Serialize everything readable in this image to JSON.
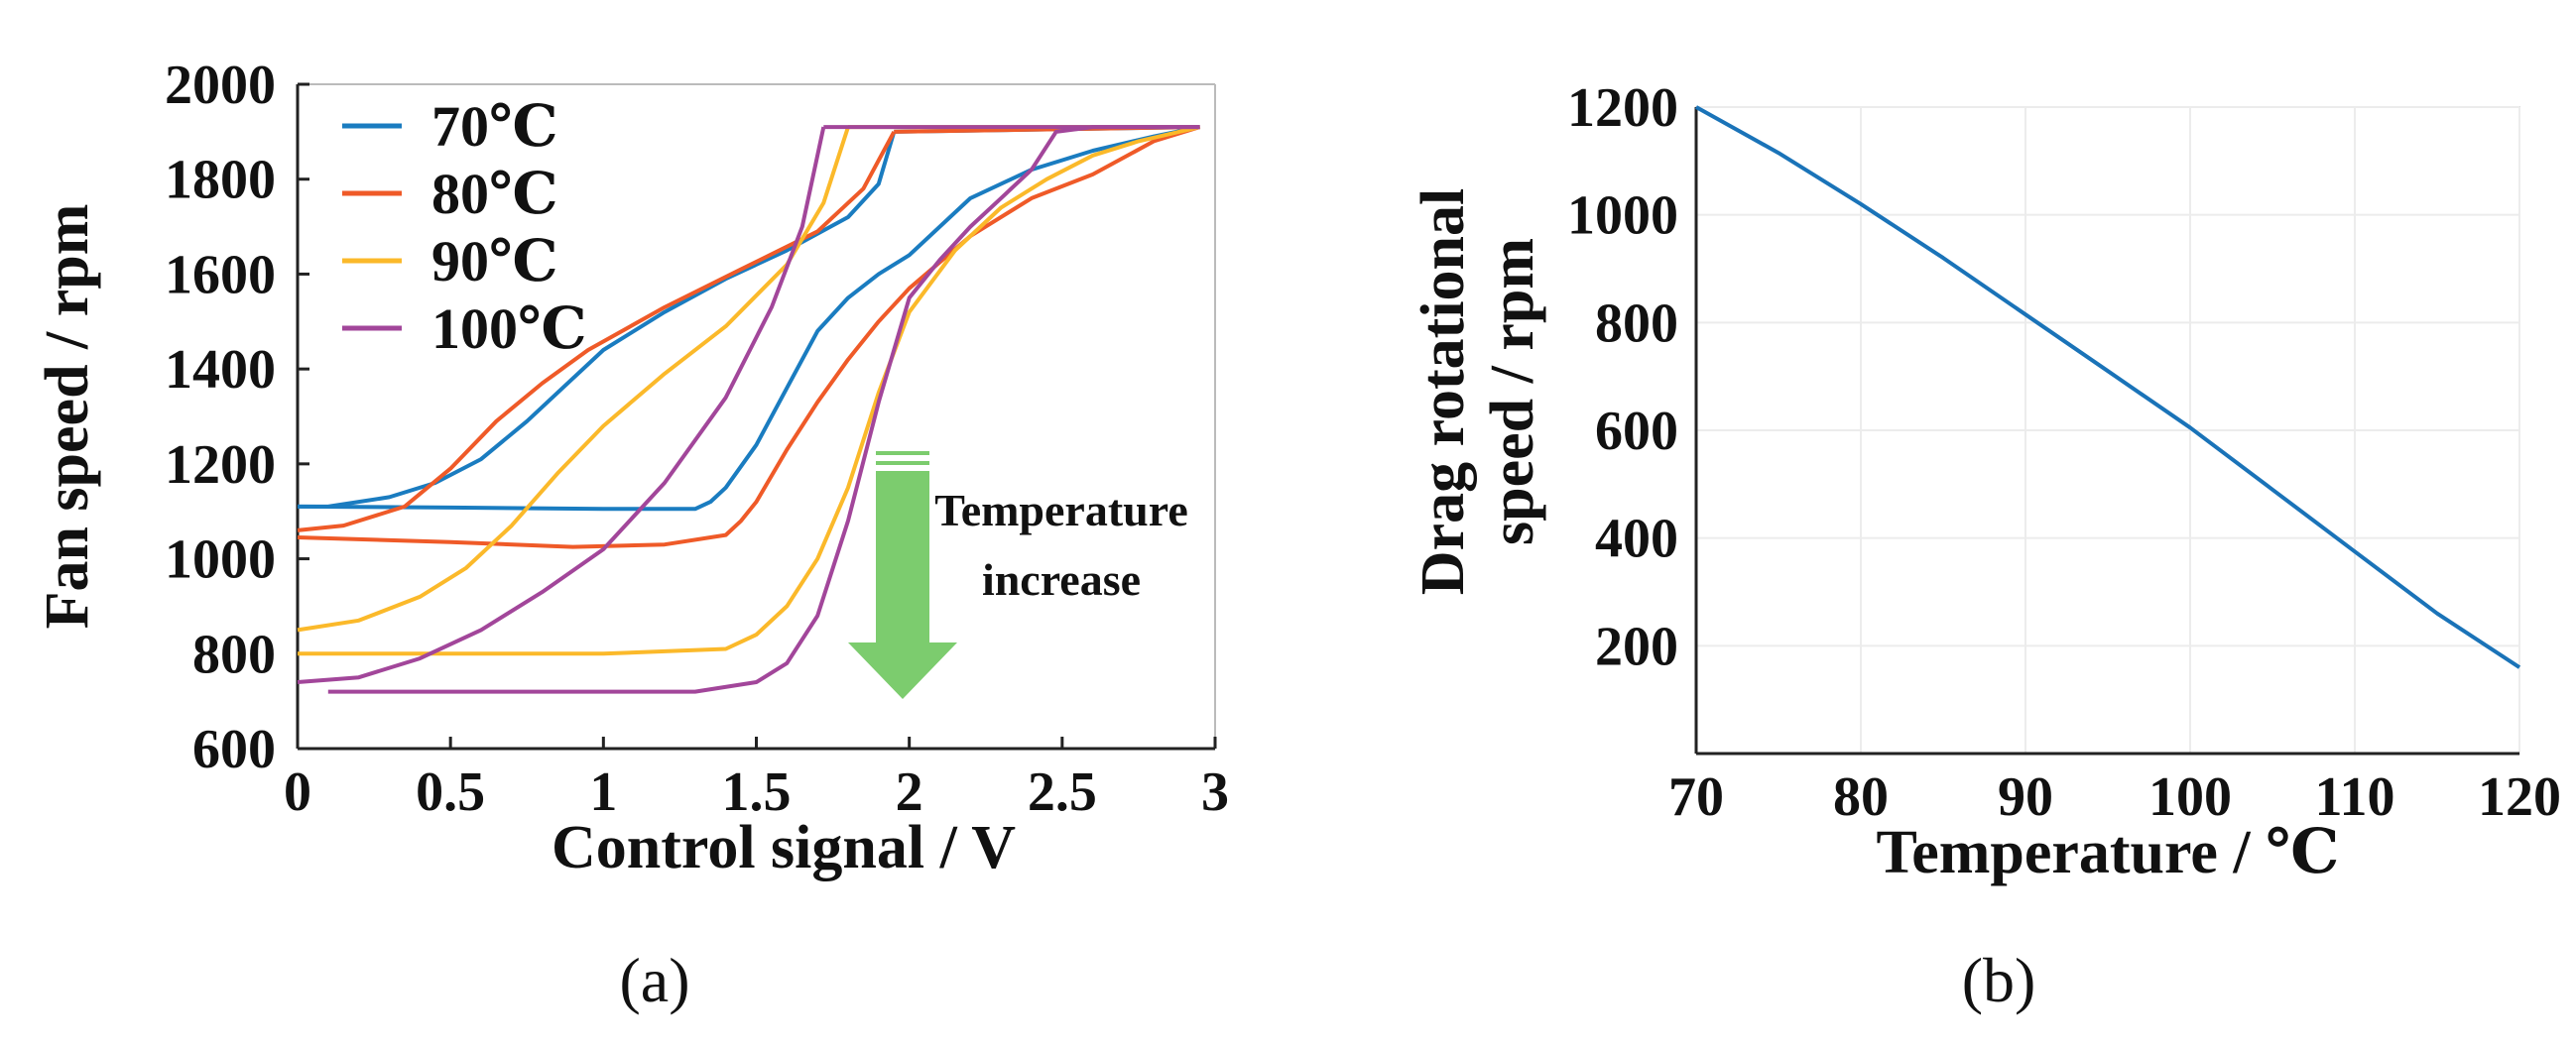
{
  "chart_data": [
    {
      "panel": "(a)",
      "type": "line",
      "xlabel": "Control signal / V",
      "ylabel": "Fan speed / rpm",
      "xlim": [
        0,
        3
      ],
      "ylim": [
        600,
        2000
      ],
      "xticks": [
        0,
        0.5,
        1,
        1.5,
        2,
        2.5,
        3
      ],
      "xtick_labels": [
        "0",
        "0.5",
        "1",
        "1.5",
        "2",
        "2.5",
        "3"
      ],
      "yticks": [
        600,
        800,
        1000,
        1200,
        1400,
        1600,
        1800,
        2000
      ],
      "ytick_labels": [
        "600",
        "800",
        "1000",
        "1200",
        "1400",
        "1600",
        "1800",
        "2000"
      ],
      "legend_position": "top-left",
      "annotation": {
        "text_line1": "Temperature",
        "text_line2": "increase",
        "arrow": "down",
        "color": "#7ccc6e"
      },
      "series": [
        {
          "name": "70℃",
          "color": "#1a7cc0",
          "x": [
            0,
            0.1,
            0.3,
            0.45,
            0.6,
            0.75,
            0.9,
            1.0,
            1.2,
            1.4,
            1.6,
            1.8,
            1.9,
            1.95
          ],
          "y": [
            1110,
            1110,
            1130,
            1160,
            1210,
            1290,
            1380,
            1440,
            1520,
            1590,
            1650,
            1720,
            1790,
            1900
          ],
          "x_return": [
            2.95,
            2.8,
            2.6,
            2.4,
            2.2,
            2.0,
            1.9,
            1.8,
            1.7,
            1.6,
            1.5,
            1.4,
            1.35,
            1.3,
            1.0,
            0.5,
            0.0
          ],
          "y_return": [
            1910,
            1890,
            1860,
            1820,
            1760,
            1640,
            1600,
            1550,
            1480,
            1360,
            1240,
            1150,
            1120,
            1105,
            1105,
            1108,
            1110
          ]
        },
        {
          "name": "80℃",
          "color": "#ef5a28",
          "x": [
            0,
            0.15,
            0.35,
            0.5,
            0.65,
            0.8,
            0.95,
            1.2,
            1.45,
            1.7,
            1.85,
            1.95
          ],
          "y": [
            1060,
            1070,
            1110,
            1190,
            1290,
            1370,
            1440,
            1530,
            1610,
            1690,
            1780,
            1900
          ],
          "x_return": [
            2.95,
            2.8,
            2.6,
            2.4,
            2.2,
            2.0,
            1.9,
            1.8,
            1.7,
            1.6,
            1.5,
            1.45,
            1.4,
            1.2,
            0.9,
            0.5,
            0.0
          ],
          "y_return": [
            1910,
            1880,
            1810,
            1760,
            1680,
            1570,
            1500,
            1420,
            1330,
            1230,
            1120,
            1080,
            1050,
            1030,
            1025,
            1035,
            1045
          ]
        },
        {
          "name": "90℃",
          "color": "#fbb92a",
          "x": [
            0,
            0.2,
            0.4,
            0.55,
            0.7,
            0.85,
            1.0,
            1.2,
            1.4,
            1.6,
            1.72,
            1.8
          ],
          "y": [
            850,
            870,
            920,
            980,
            1070,
            1180,
            1280,
            1390,
            1490,
            1620,
            1750,
            1910
          ],
          "x_return": [
            2.95,
            2.75,
            2.6,
            2.45,
            2.3,
            2.15,
            2.0,
            1.9,
            1.8,
            1.7,
            1.6,
            1.5,
            1.4,
            1.0,
            0.5,
            0.0
          ],
          "y_return": [
            1910,
            1880,
            1850,
            1800,
            1740,
            1650,
            1520,
            1350,
            1150,
            1000,
            900,
            840,
            810,
            800,
            800,
            800
          ]
        },
        {
          "name": "100℃",
          "color": "#a2469a",
          "x": [
            0,
            0.2,
            0.4,
            0.6,
            0.8,
            1.0,
            1.2,
            1.4,
            1.55,
            1.65,
            1.72
          ],
          "y": [
            740,
            750,
            790,
            850,
            930,
            1020,
            1160,
            1340,
            1530,
            1700,
            1910
          ],
          "x_return": [
            2.95,
            2.6,
            2.48,
            2.4,
            2.3,
            2.2,
            2.1,
            2.0,
            1.9,
            1.8,
            1.7,
            1.6,
            1.5,
            1.3,
            1.0,
            0.5,
            0.1
          ],
          "y_return": [
            1910,
            1910,
            1900,
            1820,
            1760,
            1700,
            1630,
            1550,
            1330,
            1080,
            880,
            780,
            740,
            720,
            720,
            720,
            720
          ]
        }
      ]
    },
    {
      "panel": "(b)",
      "type": "line",
      "xlabel": "Temperature / ℃",
      "ylabel_line1": "Drag rotational",
      "ylabel_line2": "speed / rpm",
      "xlim": [
        70,
        120
      ],
      "ylim": [
        0,
        1200
      ],
      "grid": true,
      "xticks": [
        70,
        80,
        90,
        100,
        110,
        120
      ],
      "xtick_labels": [
        "70",
        "80",
        "90",
        "100",
        "110",
        "120"
      ],
      "yticks": [
        200,
        400,
        600,
        800,
        1000,
        1200
      ],
      "ytick_labels": [
        "200",
        "400",
        "600",
        "800",
        "1000",
        "1200"
      ],
      "series": [
        {
          "name": "Drag rotational speed",
          "color": "#1a73b8",
          "x": [
            70,
            75,
            80,
            85,
            90,
            95,
            100,
            105,
            110,
            115,
            120
          ],
          "y": [
            1200,
            1115,
            1020,
            920,
            815,
            710,
            605,
            490,
            375,
            260,
            160
          ]
        }
      ]
    }
  ]
}
